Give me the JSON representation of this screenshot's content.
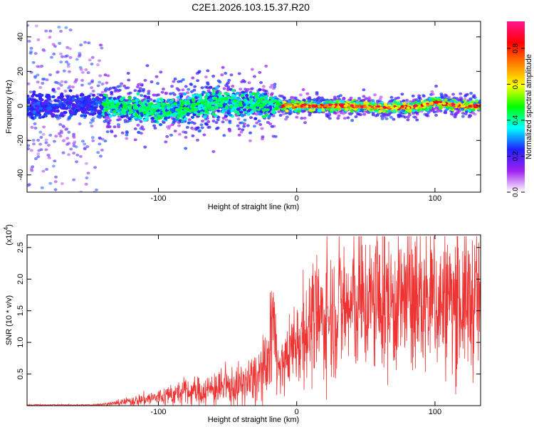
{
  "title": "C2E1.2026.103.15.37.R20",
  "chart_data": [
    {
      "type": "heatmap",
      "xlabel": "Height of straight line (km)",
      "ylabel": "Frequency (Hz)",
      "xlim": [
        -195,
        133
      ],
      "ylim": [
        -50,
        49
      ],
      "xticks": [
        -100,
        0,
        100
      ],
      "yticks": [
        -40,
        -20,
        0,
        20,
        40
      ],
      "xtick_labels": [
        "-100",
        "0",
        "100"
      ],
      "ytick_labels": [
        "-40",
        "-20",
        "0",
        "20",
        "40"
      ],
      "track": {
        "x": [
          -195,
          -160,
          -130,
          -100,
          -80,
          -60,
          -40,
          -20,
          -10,
          0,
          20,
          40,
          60,
          80,
          90,
          100,
          110,
          120,
          133
        ],
        "center_hz": [
          0,
          0,
          0,
          -3,
          -1,
          2,
          1,
          1,
          0,
          0,
          0,
          0,
          -1,
          -1,
          0,
          2,
          1,
          0,
          0
        ]
      },
      "colorbar": {
        "label": "Normalized spectral amplitude",
        "range": [
          0,
          0.95
        ],
        "ticks": [
          0,
          0.2,
          0.4,
          0.6,
          0.8
        ],
        "tick_labels": [
          "0.0",
          "0.2",
          "0.4",
          "0.6",
          "0.8"
        ],
        "colors": [
          "#ffffff",
          "#a020f0",
          "#2020ff",
          "#00ffff",
          "#00ff00",
          "#ffff00",
          "#ff8000",
          "#ff0000",
          "#ff1493"
        ]
      }
    },
    {
      "type": "line",
      "xlabel": "Height of straight line (km)",
      "ylabel": "SNR (10 * v/v)",
      "scale_label": "(x10",
      "scale_exp": "4",
      "scale_close": ")",
      "xlim": [
        -195,
        133
      ],
      "ylim": [
        0,
        2.7
      ],
      "xticks": [
        -100,
        0,
        100
      ],
      "yticks": [
        0.5,
        1.0,
        1.5,
        2.0,
        2.5
      ],
      "xtick_labels": [
        "-100",
        "0",
        "100"
      ],
      "ytick_labels": [
        "0.5",
        "1.0",
        "1.5",
        "2.0",
        "2.5"
      ],
      "color": "#ee3333",
      "envelope": {
        "x": [
          -195,
          -150,
          -140,
          -130,
          -120,
          -110,
          -100,
          -90,
          -80,
          -70,
          -60,
          -50,
          -40,
          -30,
          -25,
          -20,
          -17,
          -15,
          -13,
          -10,
          -8,
          -5,
          -2,
          0,
          5,
          10,
          20,
          30,
          40,
          50,
          60,
          70,
          80,
          90,
          100,
          110,
          120,
          133
        ],
        "y": [
          0.01,
          0.01,
          0.02,
          0.04,
          0.07,
          0.1,
          0.13,
          0.17,
          0.21,
          0.22,
          0.26,
          0.28,
          0.32,
          0.4,
          0.5,
          0.55,
          1.25,
          0.8,
          0.5,
          0.6,
          0.7,
          0.85,
          1.0,
          1.05,
          1.15,
          1.25,
          1.4,
          1.5,
          1.55,
          1.6,
          1.6,
          1.62,
          1.65,
          1.6,
          1.62,
          1.62,
          1.65,
          1.65
        ]
      }
    }
  ]
}
